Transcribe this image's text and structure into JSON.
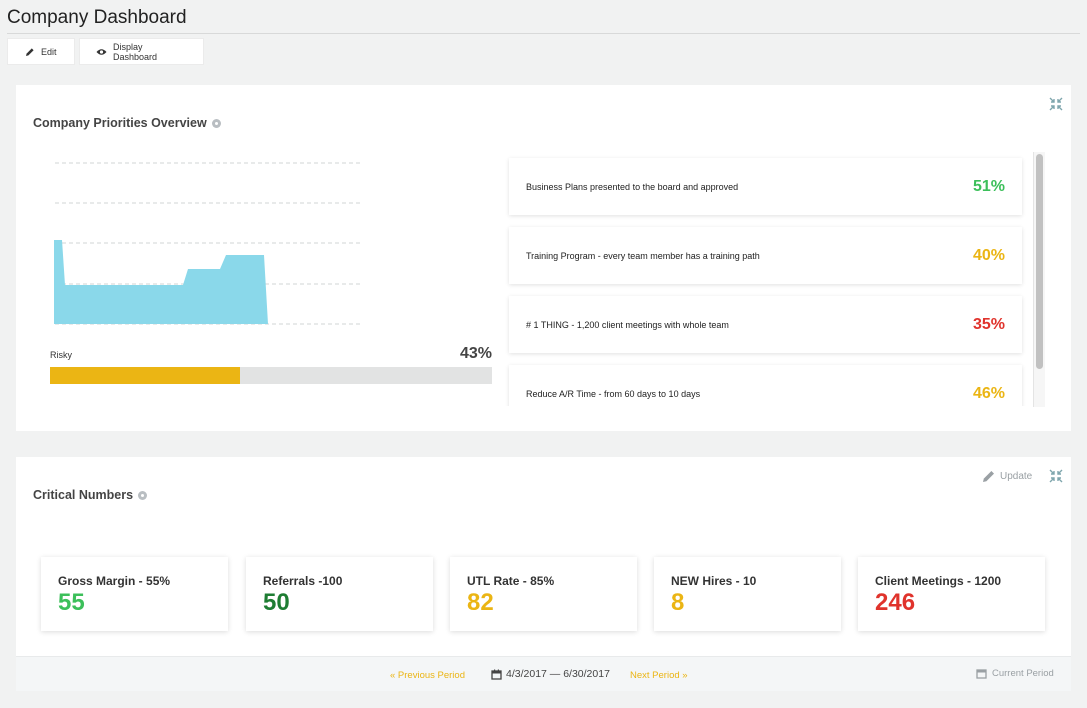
{
  "page": {
    "title": "Company Dashboard"
  },
  "toolbar": {
    "edit_label": "Edit",
    "display_label": "Display Dashboard"
  },
  "priorities": {
    "title": "Company Priorities Overview",
    "risk_label": "Risky",
    "risk_value": "43%",
    "progress": 0.43,
    "progress_color": "#ebb514",
    "items": [
      {
        "name": "Business Plans presented to the board and approved",
        "pct": "51%",
        "color": "#3cbf5a"
      },
      {
        "name": "Training Program - every team member has a training path",
        "pct": "40%",
        "color": "#ebb514"
      },
      {
        "name": "# 1 THING - 1,200 client meetings with whole team",
        "pct": "35%",
        "color": "#e0332c"
      },
      {
        "name": "Reduce A/R Time - from 60 days to 10 days",
        "pct": "46%",
        "color": "#ebb514"
      }
    ],
    "area_color": "#8ad8ea"
  },
  "numbers": {
    "title": "Critical Numbers",
    "update_label": "Update",
    "cards": [
      {
        "name": "Gross Margin - 55%",
        "value": "55",
        "color": "#3cbf5a"
      },
      {
        "name": "Referrals -100",
        "value": "50",
        "color": "#1e7d33"
      },
      {
        "name": "UTL Rate - 85%",
        "value": "82",
        "color": "#ebb514"
      },
      {
        "name": "NEW Hires - 10",
        "value": "8",
        "color": "#ebb514"
      },
      {
        "name": "Client Meetings - 1200",
        "value": "246",
        "color": "#e0332c"
      }
    ]
  },
  "period": {
    "previous_label": "« Previous Period",
    "range": "4/3/2017 — 6/30/2017",
    "next_label": "Next Period »",
    "current_label": "Current Period"
  }
}
